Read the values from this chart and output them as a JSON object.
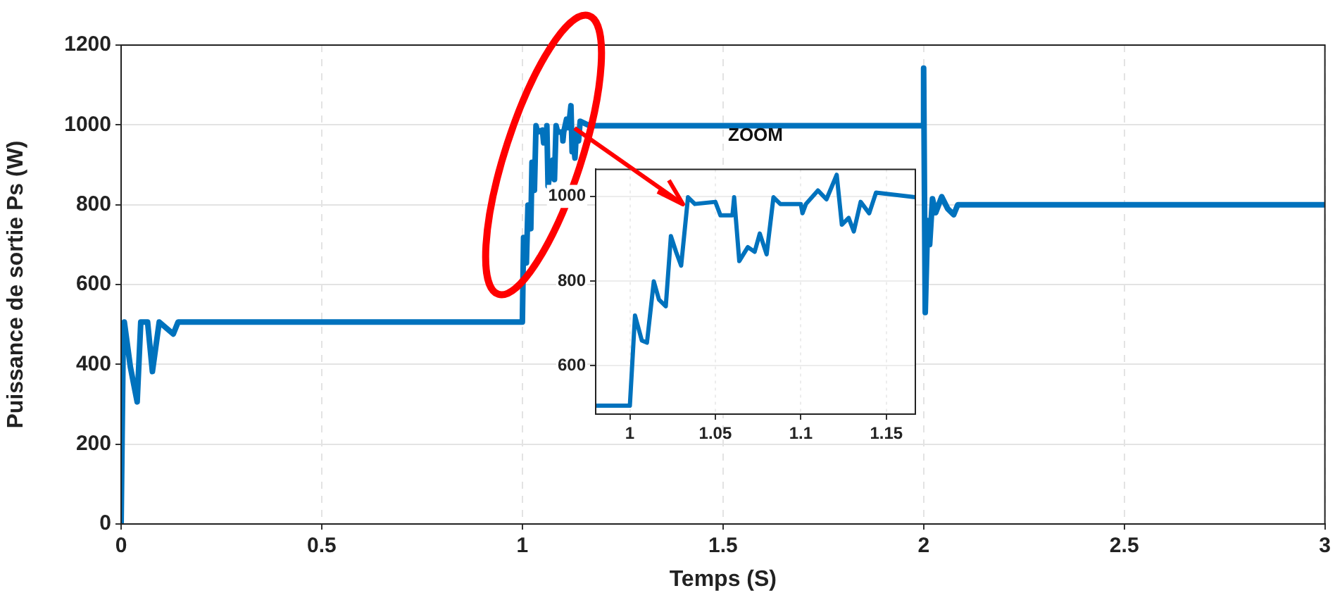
{
  "chart_data": [
    {
      "type": "line",
      "xlabel": "Temps (S)",
      "ylabel": "Puissance de sortie Ps (W)",
      "xlim": [
        0,
        3
      ],
      "ylim": [
        0,
        1200
      ],
      "xticks": [
        0,
        0.5,
        1,
        1.5,
        2,
        2.5,
        3
      ],
      "yticks": [
        0,
        200,
        400,
        600,
        800,
        1000,
        1200
      ],
      "grid": true,
      "legend": false,
      "marker": "none",
      "line_style": "solid",
      "series": [
        {
          "color": "#0072bd",
          "x": [
            0,
            0.005,
            0.008,
            0.023,
            0.04,
            0.049,
            0.066,
            0.078,
            0.095,
            0.13,
            0.142,
            1.0,
            1.003,
            1.007,
            1.01,
            1.014,
            1.017,
            1.021,
            1.024,
            1.027,
            1.03,
            1.034,
            1.038,
            1.05,
            1.053,
            1.06,
            1.061,
            1.064,
            1.069,
            1.073,
            1.076,
            1.08,
            1.084,
            1.088,
            1.1,
            1.101,
            1.103,
            1.11,
            1.115,
            1.121,
            1.124,
            1.128,
            1.131,
            1.135,
            1.14,
            1.144,
            1.167,
            2.0,
            2.0,
            2.004,
            2.01,
            2.015,
            2.022,
            2.03,
            2.045,
            2.06,
            2.075,
            2.085,
            3.0
          ],
          "values": [
            0,
            441,
            506,
            394,
            306,
            506,
            506,
            382,
            506,
            476,
            506,
            506,
            718,
            659,
            654,
            799,
            756,
            740,
            906,
            869,
            836,
            998,
            982,
            987,
            955,
            955,
            998,
            847,
            880,
            869,
            912,
            863,
            998,
            982,
            982,
            960,
            982,
            1014,
            993,
            1048,
            933,
            949,
            917,
            987,
            960,
            1009,
            998,
            998,
            1142,
            530,
            760,
            700,
            815,
            780,
            820,
            790,
            775,
            800,
            800
          ]
        }
      ]
    },
    {
      "type": "line",
      "title": "ZOOM",
      "xlim": [
        0.98,
        1.167
      ],
      "ylim": [
        485,
        1064
      ],
      "xticks": [
        1,
        1.05,
        1.1,
        1.15
      ],
      "yticks": [
        600,
        800,
        1000
      ],
      "grid": true,
      "legend": false,
      "marker": "none",
      "line_style": "solid",
      "series": [
        {
          "color": "#0072bd",
          "x": [
            0.98,
            1.0,
            1.003,
            1.007,
            1.01,
            1.014,
            1.017,
            1.021,
            1.024,
            1.027,
            1.03,
            1.034,
            1.038,
            1.05,
            1.053,
            1.06,
            1.061,
            1.064,
            1.069,
            1.073,
            1.076,
            1.08,
            1.084,
            1.088,
            1.1,
            1.101,
            1.103,
            1.11,
            1.115,
            1.121,
            1.124,
            1.128,
            1.131,
            1.135,
            1.14,
            1.144,
            1.167
          ],
          "values": [
            505,
            505,
            718,
            659,
            654,
            799,
            756,
            740,
            906,
            869,
            836,
            998,
            982,
            987,
            955,
            955,
            998,
            847,
            880,
            869,
            912,
            863,
            998,
            982,
            982,
            960,
            982,
            1014,
            993,
            1051,
            933,
            949,
            917,
            987,
            960,
            1009,
            998
          ]
        }
      ]
    }
  ]
}
